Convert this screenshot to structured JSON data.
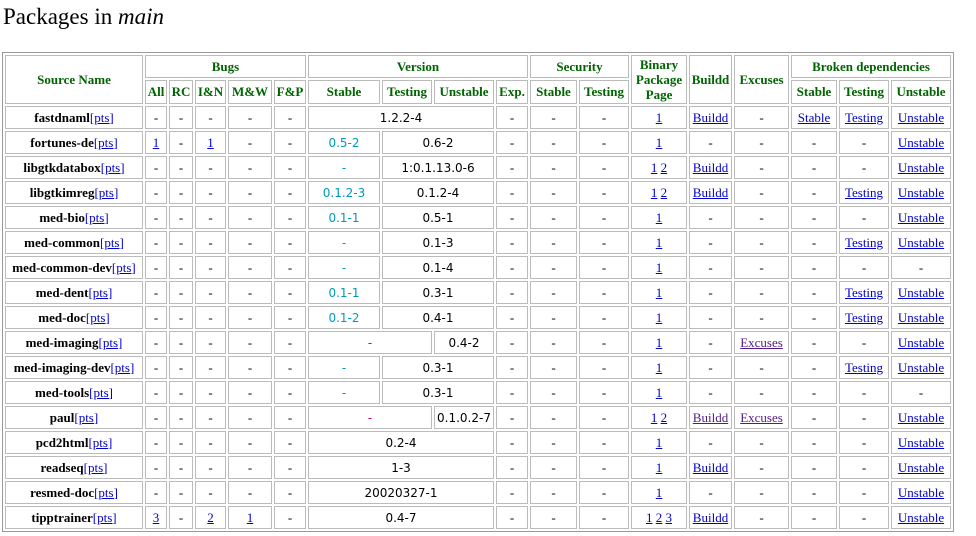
{
  "title_prefix": "Packages in ",
  "title_em": "main",
  "headers": {
    "source_name": "Source Name",
    "bugs": "Bugs",
    "version": "Version",
    "security": "Security",
    "binary": "Binary Package Page",
    "buildd": "Buildd",
    "excuses": "Excuses",
    "broken": "Broken dependencies",
    "bugs_sub": [
      "All",
      "RC",
      "I&N",
      "M&W",
      "F&P"
    ],
    "version_sub": [
      "Stable",
      "Testing",
      "Unstable",
      "Exp."
    ],
    "security_sub": [
      "Stable",
      "Testing"
    ],
    "broken_sub": [
      "Stable",
      "Testing",
      "Unstable"
    ]
  },
  "pts_label": "[pts]",
  "rows": [
    {
      "name": "fastdnaml",
      "bugs": [
        "-",
        "-",
        "-",
        "-",
        "-"
      ],
      "ver": {
        "stable": null,
        "testing": null,
        "unstable": null,
        "merged": "1.2.2-4",
        "merge": "stu"
      },
      "exp": "-",
      "sec": [
        "-",
        "-"
      ],
      "bin": [
        "1"
      ],
      "buildd": "Buildd",
      "excuses": "-",
      "broken": [
        "Stable",
        "Testing",
        "Unstable"
      ]
    },
    {
      "name": "fortunes-de",
      "bugs": [
        "1",
        "-",
        "1",
        "-",
        "-"
      ],
      "ver": {
        "stable": "0.5-2",
        "stable_color": "cyan",
        "merged": "0.6-2",
        "merge": "tu"
      },
      "exp": "-",
      "sec": [
        "-",
        "-"
      ],
      "bin": [
        "1"
      ],
      "buildd": "-",
      "excuses": "-",
      "broken": [
        "-",
        "-",
        "Unstable"
      ]
    },
    {
      "name": "libgtkdatabox",
      "bugs": [
        "-",
        "-",
        "-",
        "-",
        "-"
      ],
      "ver": {
        "stable": "-",
        "stable_color": "cyan",
        "merged": "1:0.1.13.0-6",
        "merge": "tu"
      },
      "exp": "-",
      "sec": [
        "-",
        "-"
      ],
      "bin": [
        "1",
        "2"
      ],
      "buildd": "Buildd",
      "excuses": "-",
      "broken": [
        "-",
        "-",
        "Unstable"
      ]
    },
    {
      "name": "libgtkimreg",
      "bugs": [
        "-",
        "-",
        "-",
        "-",
        "-"
      ],
      "ver": {
        "stable": "0.1.2-3",
        "stable_color": "cyan",
        "merged": "0.1.2-4",
        "merge": "tu"
      },
      "exp": "-",
      "sec": [
        "-",
        "-"
      ],
      "bin": [
        "1",
        "2"
      ],
      "buildd": "Buildd",
      "excuses": "-",
      "broken": [
        "-",
        "Testing",
        "Unstable"
      ]
    },
    {
      "name": "med-bio",
      "bugs": [
        "-",
        "-",
        "-",
        "-",
        "-"
      ],
      "ver": {
        "stable": "0.1-1",
        "stable_color": "cyan",
        "merged": "0.5-1",
        "merge": "tu"
      },
      "exp": "-",
      "sec": [
        "-",
        "-"
      ],
      "bin": [
        "1"
      ],
      "buildd": "-",
      "excuses": "-",
      "broken": [
        "-",
        "-",
        "Unstable"
      ]
    },
    {
      "name": "med-common",
      "bugs": [
        "-",
        "-",
        "-",
        "-",
        "-"
      ],
      "ver": {
        "stable": "-",
        "stable_color": "cyan",
        "merged": "0.1-3",
        "merge": "tu"
      },
      "exp": "-",
      "sec": [
        "-",
        "-"
      ],
      "bin": [
        "1"
      ],
      "buildd": "-",
      "excuses": "-",
      "broken": [
        "-",
        "Testing",
        "Unstable"
      ]
    },
    {
      "name": "med-common-dev",
      "bugs": [
        "-",
        "-",
        "-",
        "-",
        "-"
      ],
      "ver": {
        "stable": "-",
        "stable_color": "cyan",
        "merged": "0.1-4",
        "merge": "tu"
      },
      "exp": "-",
      "sec": [
        "-",
        "-"
      ],
      "bin": [
        "1"
      ],
      "buildd": "-",
      "excuses": "-",
      "broken": [
        "-",
        "-",
        "-"
      ]
    },
    {
      "name": "med-dent",
      "bugs": [
        "-",
        "-",
        "-",
        "-",
        "-"
      ],
      "ver": {
        "stable": "0.1-1",
        "stable_color": "cyan",
        "merged": "0.3-1",
        "merge": "tu"
      },
      "exp": "-",
      "sec": [
        "-",
        "-"
      ],
      "bin": [
        "1"
      ],
      "buildd": "-",
      "excuses": "-",
      "broken": [
        "-",
        "Testing",
        "Unstable"
      ]
    },
    {
      "name": "med-doc",
      "bugs": [
        "-",
        "-",
        "-",
        "-",
        "-"
      ],
      "ver": {
        "stable": "0.1-2",
        "stable_color": "cyan",
        "merged": "0.4-1",
        "merge": "tu"
      },
      "exp": "-",
      "sec": [
        "-",
        "-"
      ],
      "bin": [
        "1"
      ],
      "buildd": "-",
      "excuses": "-",
      "broken": [
        "-",
        "Testing",
        "Unstable"
      ]
    },
    {
      "name": "med-imaging",
      "bugs": [
        "-",
        "-",
        "-",
        "-",
        "-"
      ],
      "ver": {
        "stable": "-",
        "stable_color": "magenta",
        "merged": "0.4-2",
        "merge": "st_u"
      },
      "exp": "-",
      "sec": [
        "-",
        "-"
      ],
      "bin": [
        "1"
      ],
      "buildd": "-",
      "excuses": "Excuses",
      "broken": [
        "-",
        "-",
        "Unstable"
      ]
    },
    {
      "name": "med-imaging-dev",
      "bugs": [
        "-",
        "-",
        "-",
        "-",
        "-"
      ],
      "ver": {
        "stable": "-",
        "stable_color": "cyan",
        "merged": "0.3-1",
        "merge": "tu"
      },
      "exp": "-",
      "sec": [
        "-",
        "-"
      ],
      "bin": [
        "1"
      ],
      "buildd": "-",
      "excuses": "-",
      "broken": [
        "-",
        "Testing",
        "Unstable"
      ]
    },
    {
      "name": "med-tools",
      "bugs": [
        "-",
        "-",
        "-",
        "-",
        "-"
      ],
      "ver": {
        "stable": "-",
        "stable_color": "cyan",
        "merged": "0.3-1",
        "merge": "tu"
      },
      "exp": "-",
      "sec": [
        "-",
        "-"
      ],
      "bin": [
        "1"
      ],
      "buildd": "-",
      "excuses": "-",
      "broken": [
        "-",
        "-",
        "-"
      ]
    },
    {
      "name": "paul",
      "bugs": [
        "-",
        "-",
        "-",
        "-",
        "-"
      ],
      "ver": {
        "stable": "-",
        "stable_color": "magenta",
        "merged": "0.1.0.2-7",
        "merge": "st_u"
      },
      "exp": "-",
      "sec": [
        "-",
        "-"
      ],
      "bin": [
        "1",
        "2"
      ],
      "buildd": "Buildd",
      "buildd_visited": true,
      "excuses": "Excuses",
      "broken": [
        "-",
        "-",
        "Unstable"
      ]
    },
    {
      "name": "pcd2html",
      "bugs": [
        "-",
        "-",
        "-",
        "-",
        "-"
      ],
      "ver": {
        "merged": "0.2-4",
        "merge": "stu"
      },
      "exp": "-",
      "sec": [
        "-",
        "-"
      ],
      "bin": [
        "1"
      ],
      "buildd": "-",
      "excuses": "-",
      "broken": [
        "-",
        "-",
        "Unstable"
      ]
    },
    {
      "name": "readseq",
      "bugs": [
        "-",
        "-",
        "-",
        "-",
        "-"
      ],
      "ver": {
        "merged": "1-3",
        "merge": "stu"
      },
      "exp": "-",
      "sec": [
        "-",
        "-"
      ],
      "bin": [
        "1"
      ],
      "buildd": "Buildd",
      "excuses": "-",
      "broken": [
        "-",
        "-",
        "Unstable"
      ]
    },
    {
      "name": "resmed-doc",
      "bugs": [
        "-",
        "-",
        "-",
        "-",
        "-"
      ],
      "ver": {
        "merged": "20020327-1",
        "merge": "stu"
      },
      "exp": "-",
      "sec": [
        "-",
        "-"
      ],
      "bin": [
        "1"
      ],
      "buildd": "-",
      "excuses": "-",
      "broken": [
        "-",
        "-",
        "Unstable"
      ]
    },
    {
      "name": "tipptrainer",
      "bugs": [
        "3",
        "-",
        "2",
        "1",
        "-"
      ],
      "ver": {
        "merged": "0.4-7",
        "merge": "stu"
      },
      "exp": "-",
      "sec": [
        "-",
        "-"
      ],
      "bin": [
        "1",
        "2",
        "3"
      ],
      "buildd": "Buildd",
      "excuses": "-",
      "broken": [
        "-",
        "-",
        "Unstable"
      ]
    }
  ]
}
